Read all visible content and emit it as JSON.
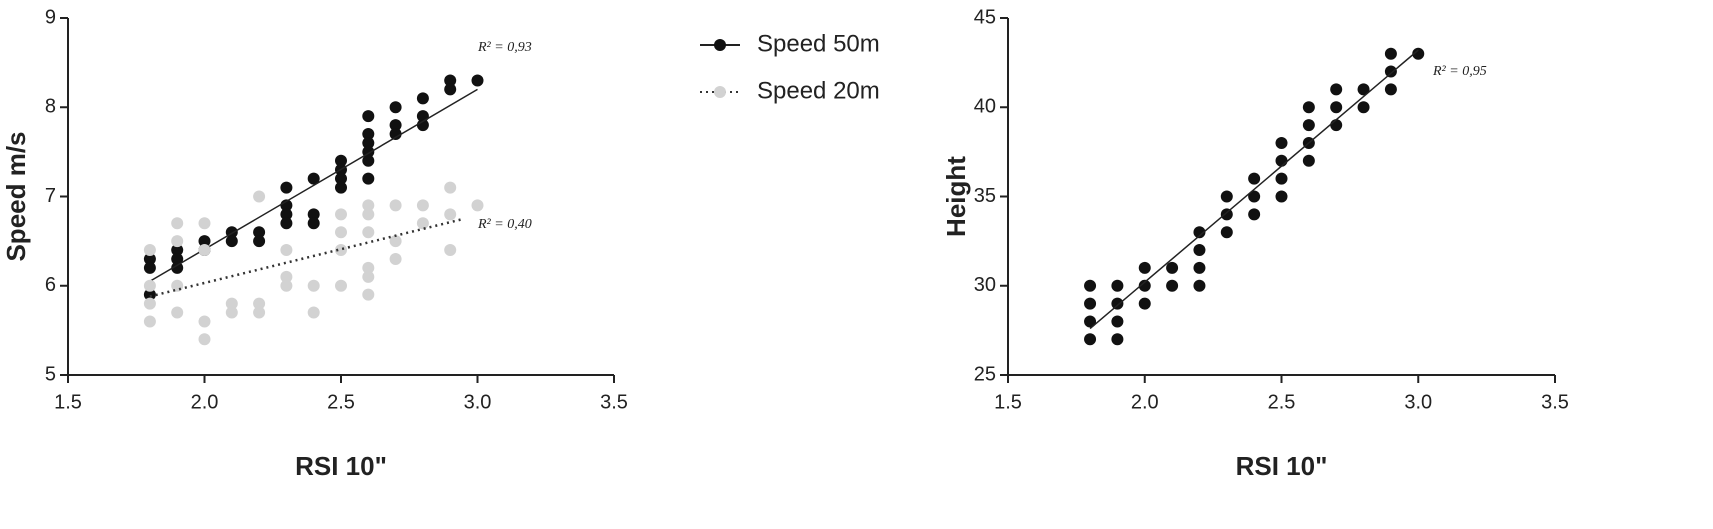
{
  "chart_data": [
    {
      "type": "scatter",
      "x_label": "RSI 10\"",
      "y_label": "Speed m/s",
      "xlim": [
        1.5,
        3.5
      ],
      "xticks": [
        1.5,
        {
          "value": 2,
          "label": "2.0"
        },
        2.5,
        {
          "value": 3,
          "label": "3.0"
        },
        3.5
      ],
      "ylim": [
        5,
        9
      ],
      "yticks": [
        5,
        6,
        7,
        8,
        9
      ],
      "legend": "right",
      "series": [
        {
          "name": "Speed 50m",
          "color": "#111111",
          "line_style": "solid",
          "r2_label": "R² = 0,93",
          "x": [
            1.8,
            1.8,
            1.8,
            1.9,
            1.9,
            1.9,
            2.0,
            2.0,
            2.1,
            2.1,
            2.2,
            2.2,
            2.3,
            2.3,
            2.3,
            2.3,
            2.4,
            2.4,
            2.4,
            2.5,
            2.5,
            2.5,
            2.5,
            2.6,
            2.6,
            2.6,
            2.6,
            2.6,
            2.6,
            2.7,
            2.7,
            2.7,
            2.8,
            2.8,
            2.8,
            2.9,
            2.9,
            3.0
          ],
          "values": [
            6.3,
            6.2,
            5.9,
            6.4,
            6.3,
            6.2,
            6.5,
            6.4,
            6.6,
            6.5,
            6.6,
            6.5,
            7.1,
            6.9,
            6.8,
            6.7,
            7.2,
            6.8,
            6.7,
            7.4,
            7.3,
            7.2,
            7.1,
            7.9,
            7.7,
            7.6,
            7.5,
            7.4,
            7.2,
            8.0,
            7.8,
            7.7,
            8.1,
            7.9,
            7.8,
            8.3,
            8.2,
            8.3
          ],
          "trend": {
            "x": [
              1.8,
              3.0
            ],
            "y": [
              6.05,
              8.2
            ]
          }
        },
        {
          "name": "Speed 20m",
          "color": "#d2d2d2",
          "line_style": "dotted",
          "r2_label": "R² = 0,40",
          "x": [
            1.8,
            1.8,
            1.8,
            1.8,
            1.9,
            1.9,
            1.9,
            1.9,
            2.0,
            2.0,
            2.0,
            2.0,
            2.1,
            2.1,
            2.2,
            2.2,
            2.2,
            2.3,
            2.3,
            2.3,
            2.4,
            2.4,
            2.5,
            2.5,
            2.5,
            2.5,
            2.6,
            2.6,
            2.6,
            2.6,
            2.6,
            2.6,
            2.7,
            2.7,
            2.7,
            2.8,
            2.8,
            2.9,
            2.9,
            2.9,
            3.0
          ],
          "values": [
            6.4,
            6.0,
            5.8,
            5.6,
            6.7,
            6.5,
            6.0,
            5.7,
            6.7,
            6.4,
            5.6,
            5.4,
            5.8,
            5.7,
            7.0,
            5.8,
            5.7,
            6.4,
            6.1,
            6.0,
            6.0,
            5.7,
            6.8,
            6.6,
            6.4,
            6.0,
            6.9,
            6.8,
            6.6,
            6.2,
            6.1,
            5.9,
            6.9,
            6.5,
            6.3,
            6.9,
            6.7,
            7.1,
            6.8,
            6.4,
            6.9
          ],
          "trend": {
            "x": [
              1.8,
              2.95
            ],
            "y": [
              5.88,
              6.75
            ]
          }
        }
      ]
    },
    {
      "type": "scatter",
      "x_label": "RSI 10\"",
      "y_label": "Height",
      "xlim": [
        1.5,
        3.5
      ],
      "xticks": [
        1.5,
        {
          "value": 2,
          "label": "2.0"
        },
        2.5,
        {
          "value": 3,
          "label": "3.0"
        },
        3.5
      ],
      "ylim": [
        25,
        45
      ],
      "yticks": [
        25,
        30,
        35,
        40,
        45
      ],
      "series": [
        {
          "color": "#111111",
          "line_style": "solid",
          "r2_label": "R² = 0,95",
          "x": [
            1.8,
            1.8,
            1.8,
            1.8,
            1.9,
            1.9,
            1.9,
            1.9,
            2.0,
            2.0,
            2.0,
            2.1,
            2.1,
            2.2,
            2.2,
            2.2,
            2.2,
            2.3,
            2.3,
            2.3,
            2.4,
            2.4,
            2.4,
            2.5,
            2.5,
            2.5,
            2.5,
            2.6,
            2.6,
            2.6,
            2.6,
            2.7,
            2.7,
            2.7,
            2.8,
            2.8,
            2.9,
            2.9,
            2.9,
            3.0
          ],
          "values": [
            30,
            29,
            28,
            27,
            30,
            29,
            28,
            27,
            31,
            30,
            29,
            31,
            30,
            33,
            32,
            31,
            30,
            35,
            34,
            33,
            36,
            35,
            34,
            38,
            37,
            36,
            35,
            40,
            39,
            38,
            37,
            41,
            40,
            39,
            41,
            40,
            43,
            42,
            41,
            43
          ],
          "trend": {
            "x": [
              1.8,
              3.0
            ],
            "y": [
              27.6,
              43.2
            ]
          }
        }
      ]
    }
  ]
}
